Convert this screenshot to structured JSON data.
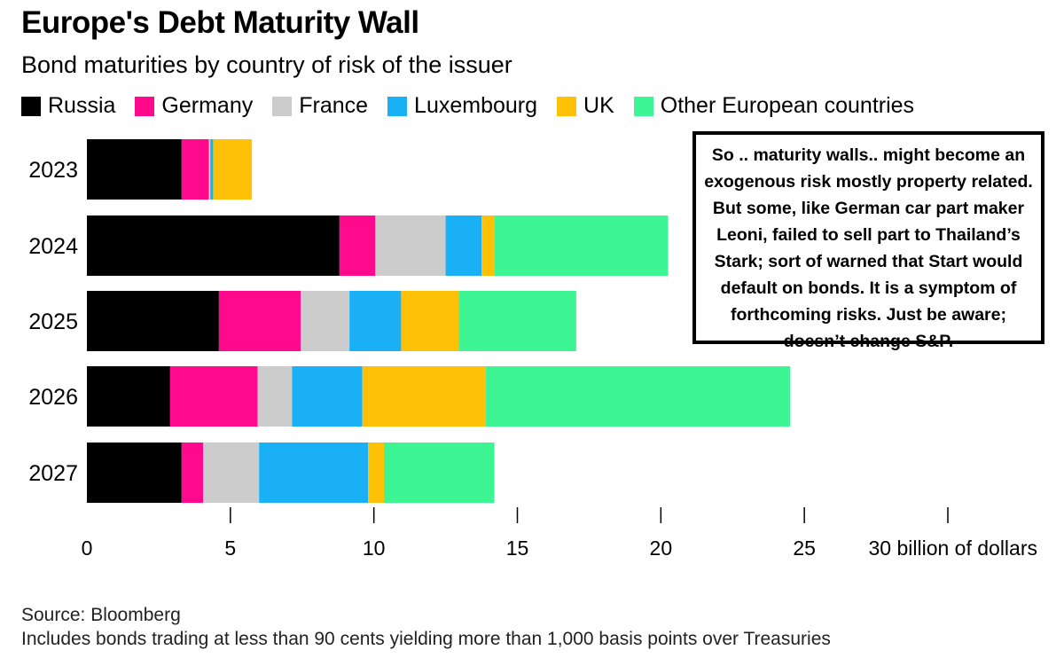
{
  "chart_data": {
    "type": "bar",
    "orientation": "horizontal",
    "stacked": true,
    "title": "Europe's Debt Maturity Wall",
    "subtitle": "Bond maturities by country of risk of the issuer",
    "categories": [
      "2023",
      "2024",
      "2025",
      "2026",
      "2027"
    ],
    "series": [
      {
        "name": "Russia",
        "color": "#000000",
        "values": [
          3.3,
          8.8,
          4.6,
          2.9,
          3.3
        ]
      },
      {
        "name": "Germany",
        "color": "#ff0a8c",
        "values": [
          0.95,
          1.25,
          2.85,
          3.05,
          0.75
        ]
      },
      {
        "name": "France",
        "color": "#cccccc",
        "values": [
          0.05,
          2.45,
          1.7,
          1.2,
          1.95
        ]
      },
      {
        "name": "Luxembourg",
        "color": "#1ab0f5",
        "values": [
          0.1,
          1.25,
          1.8,
          2.45,
          3.8
        ]
      },
      {
        "name": "UK",
        "color": "#ffc107",
        "values": [
          1.35,
          0.45,
          2.0,
          4.3,
          0.55
        ]
      },
      {
        "name": "Other European countries",
        "color": "#3df592",
        "values": [
          0,
          6.05,
          4.1,
          10.6,
          3.85
        ]
      }
    ],
    "xlim": [
      0,
      30
    ],
    "xticks": [
      "0",
      "5",
      "10",
      "15",
      "20",
      "25",
      "30 billion of dollars"
    ],
    "xtick_values": [
      0,
      5,
      10,
      15,
      20,
      25,
      30
    ],
    "legend_position": "top-left",
    "grid": false
  },
  "annotation": "So .. maturity walls.. might become an exogenous risk mostly property related. But some, like German car part maker Leoni, failed to sell part to Thailand’s Stark; sort of warned that Start would default on bonds. It is a symptom of forthcoming risks. Just be aware; doesn’t change S&P.",
  "footer": {
    "source": "Source: Bloomberg",
    "note": "Includes bonds trading at less than 90 cents yielding more than 1,000 basis points over Treasuries"
  }
}
